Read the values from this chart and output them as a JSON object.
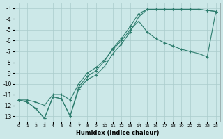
{
  "xlabel": "Humidex (Indice chaleur)",
  "bg_color": "#cce8e8",
  "grid_color": "#aacccc",
  "line_color": "#2e7d6e",
  "xlim": [
    -0.5,
    23.5
  ],
  "ylim": [
    -13.5,
    -2.5
  ],
  "xticks": [
    0,
    1,
    2,
    3,
    4,
    5,
    6,
    7,
    8,
    9,
    10,
    11,
    12,
    13,
    14,
    15,
    16,
    17,
    18,
    19,
    20,
    21,
    22,
    23
  ],
  "yticks": [
    -3,
    -4,
    -5,
    -6,
    -7,
    -8,
    -9,
    -10,
    -11,
    -12,
    -13
  ],
  "line1_x": [
    0,
    1,
    2,
    3,
    4,
    5,
    6,
    7,
    8,
    9,
    10,
    11,
    12,
    13,
    14,
    15,
    16,
    17,
    18,
    19,
    20,
    21,
    22,
    23
  ],
  "line1_y": [
    -11.5,
    -11.7,
    -12.3,
    -13.2,
    -11.2,
    -11.4,
    -13.0,
    -10.3,
    -9.3,
    -8.8,
    -7.9,
    -6.7,
    -5.8,
    -4.7,
    -3.5,
    -3.1,
    -3.1,
    -3.1,
    -3.1,
    -3.1,
    -3.1,
    -3.1,
    -3.2,
    -3.3
  ],
  "line2_x": [
    0,
    1,
    2,
    3,
    4,
    5,
    6,
    7,
    8,
    9,
    10,
    11,
    12,
    13,
    14,
    15,
    16,
    17,
    18,
    19,
    20,
    21,
    22,
    23
  ],
  "line2_y": [
    -11.5,
    -11.7,
    -12.3,
    -13.2,
    -11.2,
    -11.4,
    -13.0,
    -10.5,
    -9.6,
    -9.2,
    -8.4,
    -7.2,
    -6.3,
    -5.2,
    -3.8,
    -3.1,
    -3.1,
    -3.1,
    -3.1,
    -3.1,
    -3.1,
    -3.1,
    -3.2,
    -3.3
  ],
  "line3_x": [
    0,
    1,
    2,
    3,
    4,
    5,
    6,
    7,
    8,
    9,
    10,
    11,
    12,
    13,
    14,
    15,
    16,
    17,
    18,
    19,
    20,
    21,
    22,
    23
  ],
  "line3_y": [
    -11.5,
    -11.5,
    -11.7,
    -12.0,
    -11.0,
    -11.0,
    -11.5,
    -10.0,
    -9.0,
    -8.5,
    -7.8,
    -6.8,
    -6.0,
    -5.0,
    -4.2,
    -5.2,
    -5.8,
    -6.2,
    -6.5,
    -6.8,
    -7.0,
    -7.2,
    -7.5,
    -3.3
  ]
}
